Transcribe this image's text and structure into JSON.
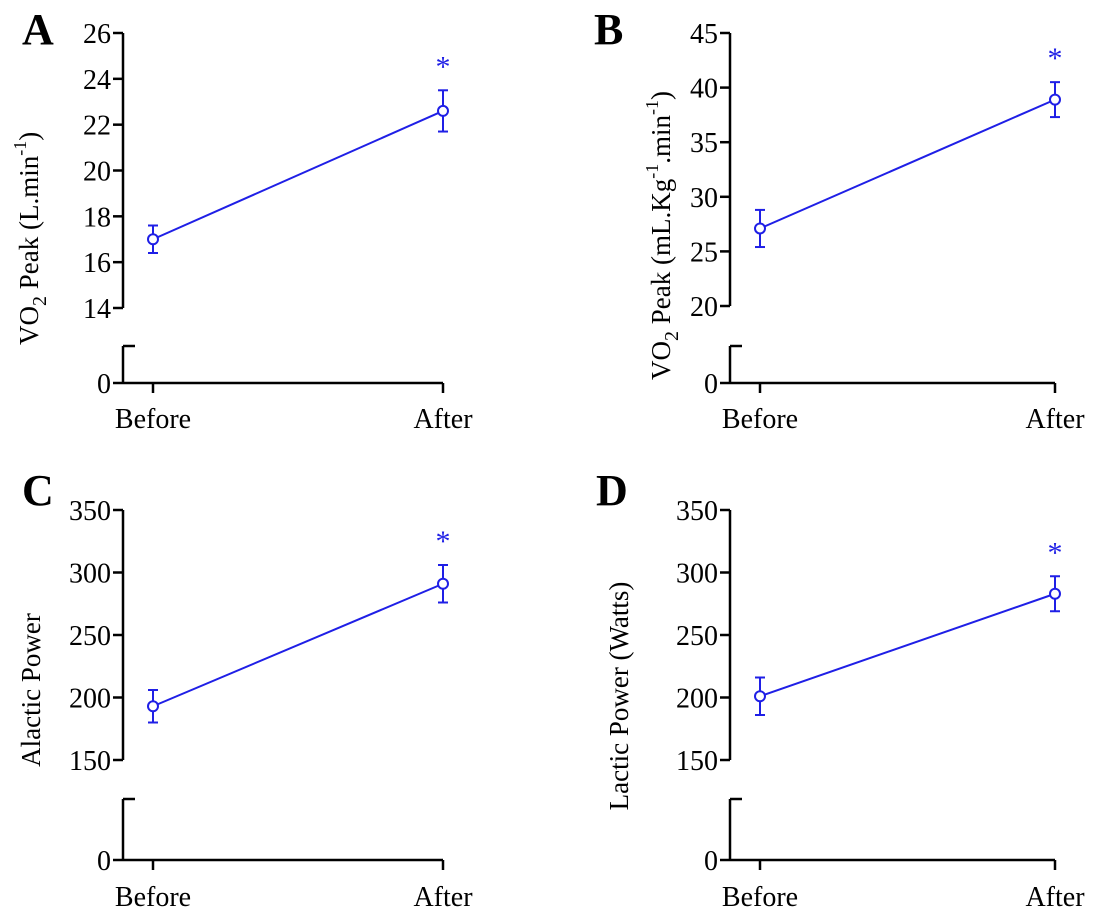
{
  "colors": {
    "series": "#1f1fe6",
    "axis": "#000000",
    "background": "#ffffff"
  },
  "panels": [
    {
      "letter": "A",
      "ylabel_main": "VO",
      "ylabel_sub": "2",
      "ylabel_rest": "Peak (L.min",
      "ylabel_sup": "-1",
      "ylabel_close": ")"
    },
    {
      "letter": "B",
      "ylabel_main": "VO",
      "ylabel_sub": "2",
      "ylabel_rest": "Peak  (mL.Kg",
      "ylabel_sup1": "-1",
      "ylabel_mid": ".min",
      "ylabel_sup2": "-1",
      "ylabel_close": ")"
    },
    {
      "letter": "C",
      "ylabel": "Alactic Power"
    },
    {
      "letter": "D",
      "ylabel": "Lactic Power (Watts)"
    }
  ],
  "chart_data": [
    {
      "type": "line",
      "panel": "A",
      "categories": [
        "Before",
        "After"
      ],
      "series": [
        {
          "values": [
            17.0,
            22.6
          ],
          "errors": [
            0.6,
            0.9
          ]
        }
      ],
      "ylabel": "VO2 Peak (L.min-1)",
      "yticks": [
        0,
        14,
        16,
        18,
        20,
        22,
        24,
        26
      ],
      "ylim": [
        14,
        26
      ],
      "axis_break": true,
      "significance": [
        "",
        "*"
      ]
    },
    {
      "type": "line",
      "panel": "B",
      "categories": [
        "Before",
        "After"
      ],
      "series": [
        {
          "values": [
            27.1,
            38.9
          ],
          "errors": [
            1.7,
            1.6
          ]
        }
      ],
      "ylabel": "VO2 Peak  (mL.Kg-1.min-1)",
      "yticks": [
        0,
        20,
        25,
        30,
        35,
        40,
        45
      ],
      "ylim": [
        20,
        45
      ],
      "axis_break": true,
      "significance": [
        "",
        "*"
      ]
    },
    {
      "type": "line",
      "panel": "C",
      "categories": [
        "Before",
        "After"
      ],
      "series": [
        {
          "values": [
            193,
            291
          ],
          "errors": [
            13,
            15
          ]
        }
      ],
      "ylabel": "Alactic Power",
      "yticks": [
        0,
        150,
        200,
        250,
        300,
        350
      ],
      "ylim": [
        150,
        350
      ],
      "axis_break": true,
      "significance": [
        "",
        "*"
      ]
    },
    {
      "type": "line",
      "panel": "D",
      "categories": [
        "Before",
        "After"
      ],
      "series": [
        {
          "values": [
            201,
            283
          ],
          "errors": [
            15,
            14
          ]
        }
      ],
      "ylabel": "Lactic Power (Watts)",
      "yticks": [
        0,
        150,
        200,
        250,
        300,
        350
      ],
      "ylim": [
        150,
        350
      ],
      "axis_break": true,
      "significance": [
        "",
        "*"
      ]
    }
  ]
}
